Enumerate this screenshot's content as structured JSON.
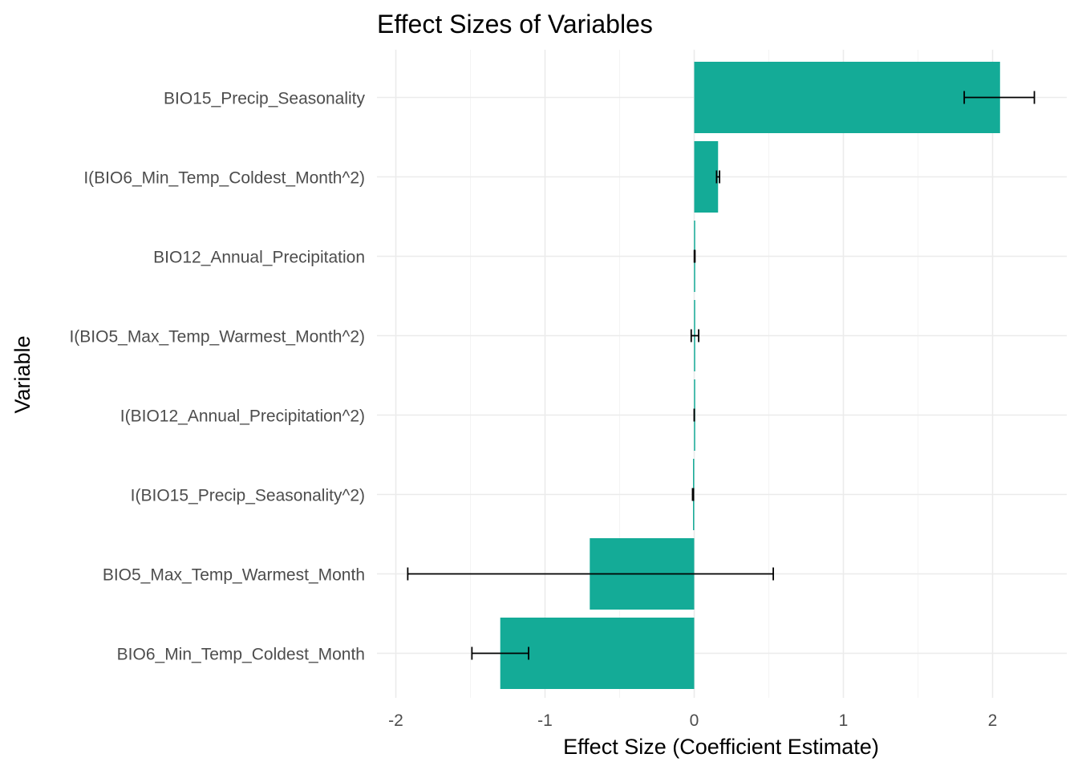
{
  "chart_data": {
    "type": "bar",
    "orientation": "horizontal",
    "title": "Effect Sizes of Variables",
    "xlabel": "Effect Size (Coefficient Estimate)",
    "ylabel": "Variable",
    "xlim": [
      -2.2,
      2.5
    ],
    "xticks": [
      -2,
      -1,
      0,
      1,
      2
    ],
    "xtick_labels": [
      "-2",
      "-1",
      "0",
      "1",
      "2"
    ],
    "grid": true,
    "legend": "none",
    "colors": {
      "bar": "#14ab97",
      "error_bar": "#000000",
      "grid_major": "#ebebeb",
      "grid_minor": "#f4f4f4"
    },
    "categories": [
      "BIO15_Precip_Seasonality",
      "I(BIO6_Min_Temp_Coldest_Month^2)",
      "BIO12_Annual_Precipitation",
      "I(BIO5_Max_Temp_Warmest_Month^2)",
      "I(BIO12_Annual_Precipitation^2)",
      "I(BIO15_Precip_Seasonality^2)",
      "BIO5_Max_Temp_Warmest_Month",
      "BIO6_Min_Temp_Coldest_Month"
    ],
    "values": [
      2.05,
      0.16,
      0.003,
      0.004,
      0.0005,
      -0.008,
      -0.7,
      -1.3
    ],
    "error_low": [
      1.81,
      0.15,
      0.001,
      -0.02,
      0.0002,
      -0.011,
      -1.92,
      -1.49
    ],
    "error_high": [
      2.28,
      0.17,
      0.005,
      0.03,
      0.0008,
      -0.005,
      0.53,
      -1.11
    ]
  }
}
